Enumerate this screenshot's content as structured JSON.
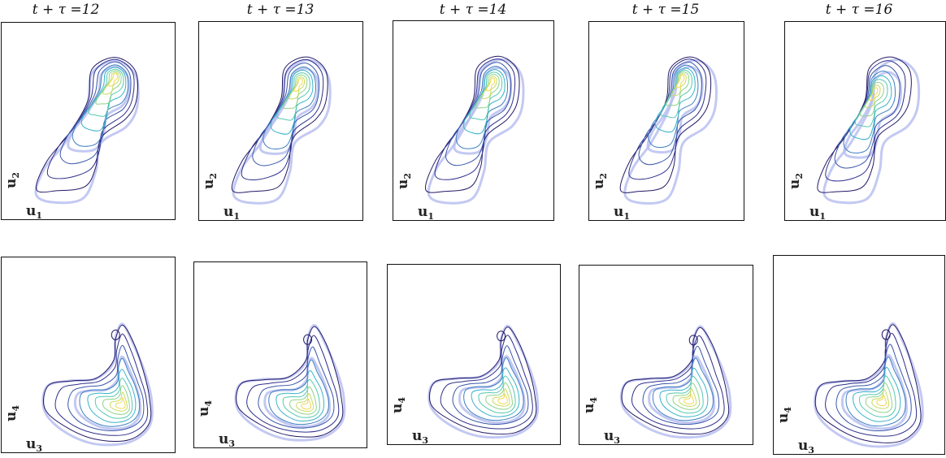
{
  "figure": {
    "columns": [
      {
        "title": "t + τ =12"
      },
      {
        "title": "t + τ =13"
      },
      {
        "title": "t + τ =14"
      },
      {
        "title": "t + τ =15"
      },
      {
        "title": "t + τ =16"
      }
    ],
    "rows": [
      {
        "x_label": {
          "base": "u",
          "sub": "1"
        },
        "y_label": {
          "base": "u",
          "sub": "2"
        }
      },
      {
        "x_label": {
          "base": "u",
          "sub": "3"
        },
        "y_label": {
          "base": "u",
          "sub": "4"
        }
      }
    ],
    "colors": {
      "reference_contour": "#b9bff0",
      "innermost": "#f2e35a",
      "palette": [
        "#2b1f6e",
        "#3b4aa3",
        "#3f7fc0",
        "#3ab6c9",
        "#61cfa9",
        "#a6d86b",
        "#f2e35a"
      ]
    }
  }
}
